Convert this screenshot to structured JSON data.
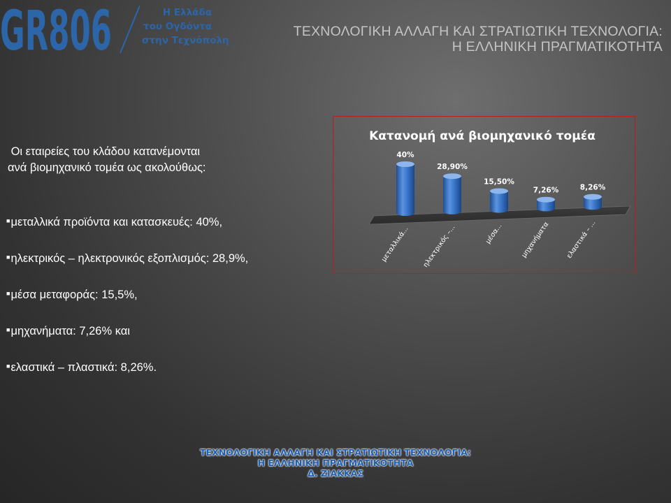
{
  "logo": {
    "mark": "GR806",
    "lines": [
      "Η Ελλάδα",
      "του Ογδόντα",
      "στην Τεχνόπολη"
    ]
  },
  "slide_title": {
    "line1": "ΤΕΧΝΟΛΟΓΙΚΗ ΑΛΛΑΓΗ ΚΑΙ ΣΤΡΑΤΙΩΤΙΚΗ ΤΕΧΝΟΛΟΓΙΑ:",
    "line2": "Η ΕΛΛΗΝΙΚΗ ΠΡΑΓΜΑΤΙΚΟΤΗΤΑ"
  },
  "intro": {
    "line1": " Οι εταιρείες του κλάδου κατανέμονται",
    "line2": "ανά βιομηχανικό τομέα ως ακολούθως:"
  },
  "bullets": [
    "μεταλλικά προϊόντα και κατασκευές: 40%,",
    "ηλεκτρικός – ηλεκτρονικός εξοπλισμός: 28,9%,",
    "μέσα μεταφοράς: 15,5%,",
    "μηχανήματα: 7,26% και",
    "ελαστικά – πλαστικά: 8,26%."
  ],
  "chart_data": {
    "type": "bar",
    "style": "3d-cylinder",
    "title": "Κατανομή ανά βιομηχανικό τομέα",
    "categories": [
      "μεταλλικά...",
      "ηλεκτρικός –...",
      "μέσα...",
      "μηχανήματα",
      "ελαστικά – ..."
    ],
    "values": [
      40,
      28.9,
      15.5,
      7.26,
      8.26
    ],
    "data_labels": [
      "40%",
      "28,90%",
      "15,50%",
      "7,26%",
      "8,26%"
    ],
    "ylim": [
      0,
      40
    ],
    "grid": false,
    "legend": "none",
    "bar_color": "#2f6cc0",
    "bar_highlight": "#8db6ec",
    "border_color": "#b81e1e"
  },
  "footer": {
    "line1": "ΤΕΧΝΟΛΟΓΙΚΗ ΑΛΛΑΓΗ ΚΑΙ ΣΤΡΑΤΙΩΤΙΚΗ ΤΕΧΝΟΛΟΓΙΑ:",
    "line2": "Η ΕΛΛΗΝΙΚΗ ΠΡΑΓΜΑΤΙΚΟΤΗΤΑ",
    "line3": "Δ. ΖΙΑΚΚΑΣ",
    "color": "#1f5fb0"
  }
}
